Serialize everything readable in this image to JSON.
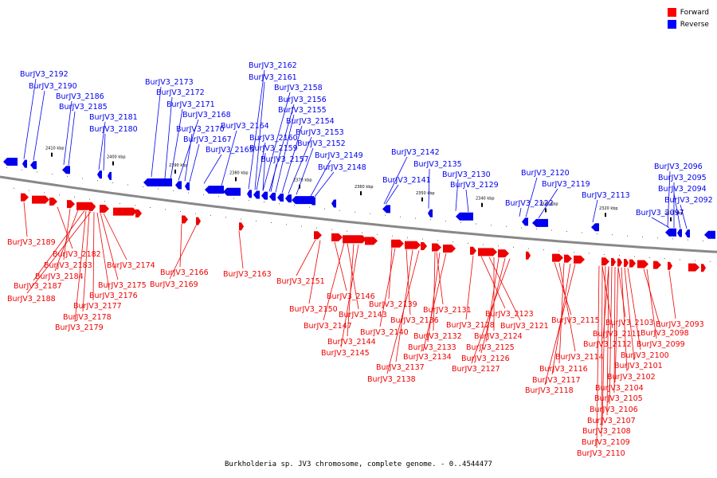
{
  "legend": {
    "items": [
      {
        "label": "Forward",
        "color": "#ff0000"
      },
      {
        "label": "Reverse",
        "color": "#0000ff"
      }
    ]
  },
  "caption": "Burkholderia sp. JV3 chromosome, complete genome. - 0..4544477",
  "colors": {
    "forward": "#ee0000",
    "reverse": "#0000ee",
    "backbone": "#888888",
    "tick": "#000000"
  },
  "scale": {
    "ticks": [
      {
        "label": "2410 kbp",
        "kbp": 2410
      },
      {
        "label": "2400 kbp",
        "kbp": 2400
      },
      {
        "label": "2390 kbp",
        "kbp": 2390
      },
      {
        "label": "2380 kbp",
        "kbp": 2380
      },
      {
        "label": "2370 kbp",
        "kbp": 2370
      },
      {
        "label": "2360 kbp",
        "kbp": 2360
      },
      {
        "label": "2350 kbp",
        "kbp": 2350
      },
      {
        "label": "2340 kbp",
        "kbp": 2340
      },
      {
        "label": "2330 kbp",
        "kbp": 2330
      },
      {
        "label": "2320 kbp",
        "kbp": 2320
      },
      {
        "label": "2310 kbp",
        "kbp": 2310
      }
    ]
  },
  "genes": {
    "reverse": [
      "BurJV3_2192",
      "BurJV3_2190",
      "BurJV3_2186",
      "BurJV3_2185",
      "BurJV3_2181",
      "BurJV3_2180",
      "BurJV3_2173",
      "BurJV3_2172",
      "BurJV3_2171",
      "BurJV3_2168",
      "BurJV3_2170",
      "BurJV3_2167",
      "BurJV3_2165",
      "BurJV3_2164",
      "BurJV3_2162",
      "BurJV3_2161",
      "BurJV3_2158",
      "BurJV3_2156",
      "BurJV3_2155",
      "BurJV3_2154",
      "BurJV3_2153",
      "BurJV3_2152",
      "BurJV3_2160",
      "BurJV3_2159",
      "BurJV3_2157",
      "BurJV3_2149",
      "BurJV3_2148",
      "BurJV3_2142",
      "BurJV3_2141",
      "BurJV3_2135",
      "BurJV3_2130",
      "BurJV3_2129",
      "BurJV3_2120",
      "BurJV3_2119",
      "BurJV3_2122",
      "BurJV3_2113",
      "BurJV3_2096",
      "BurJV3_2095",
      "BurJV3_2094",
      "BurJV3_2092",
      "BurJV3_2097"
    ],
    "forward": [
      "BurJV3_2189",
      "BurJV3_2182",
      "BurJV3_2183",
      "BurJV3_2184",
      "BurJV3_2187",
      "BurJV3_2188",
      "BurJV3_2174",
      "BurJV3_2175",
      "BurJV3_2176",
      "BurJV3_2177",
      "BurJV3_2178",
      "BurJV3_2179",
      "BurJV3_2166",
      "BurJV3_2169",
      "BurJV3_2163",
      "BurJV3_2151",
      "BurJV3_2150",
      "BurJV3_2146",
      "BurJV3_2143",
      "BurJV3_2147",
      "BurJV3_2144",
      "BurJV3_2145",
      "BurJV3_2139",
      "BurJV3_2140",
      "BurJV3_2136",
      "BurJV3_2137",
      "BurJV3_2138",
      "BurJV3_2131",
      "BurJV3_2132",
      "BurJV3_2133",
      "BurJV3_2134",
      "BurJV3_2128",
      "BurJV3_2123",
      "BurJV3_2121",
      "BurJV3_2124",
      "BurJV3_2125",
      "BurJV3_2126",
      "BurJV3_2127",
      "BurJV3_2115",
      "BurJV3_2114",
      "BurJV3_2116",
      "BurJV3_2117",
      "BurJV3_2118",
      "BurJV3_2111",
      "BurJV3_2112",
      "BurJV3_2103",
      "BurJV3_2098",
      "BurJV3_2099",
      "BurJV3_2093",
      "BurJV3_2100",
      "BurJV3_2101",
      "BurJV3_2102",
      "BurJV3_2104",
      "BurJV3_2105",
      "BurJV3_2106",
      "BurJV3_2107",
      "BurJV3_2108",
      "BurJV3_2109",
      "BurJV3_2110"
    ]
  }
}
